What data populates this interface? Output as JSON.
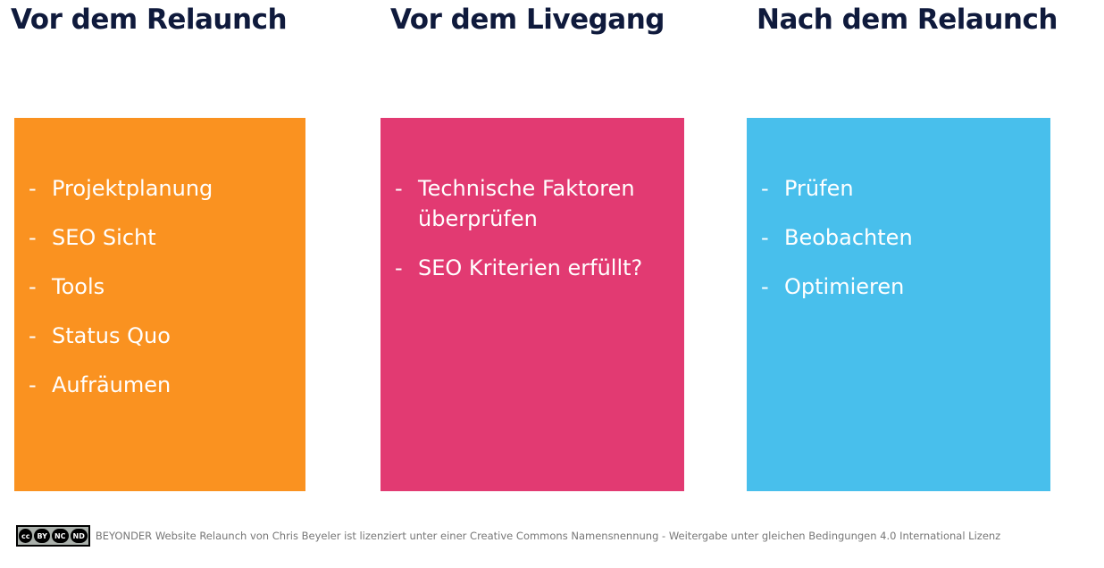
{
  "columns": [
    {
      "title": "Vor dem Relaunch",
      "color": "#fa9220",
      "items": [
        "Projektplanung",
        "SEO Sicht",
        "Tools",
        "Status Quo",
        "Aufräumen"
      ]
    },
    {
      "title": "Vor dem Livegang",
      "color": "#e23a72",
      "items": [
        "Technische Faktoren überprüfen",
        "SEO Kriterien erfüllt?"
      ]
    },
    {
      "title": "Nach dem Relaunch",
      "color": "#48bfec",
      "items": [
        "Prüfen",
        "Beobachten",
        "Optimieren"
      ]
    }
  ],
  "list_marker": "-",
  "footer": {
    "badge": [
      "cc",
      "BY",
      "NC",
      "ND"
    ],
    "text": "BEYONDER Website Relaunch von Chris Beyeler ist lizenziert unter einer Creative Commons Namensnennung - Weitergabe unter gleichen Bedingungen 4.0 International Lizenz"
  }
}
